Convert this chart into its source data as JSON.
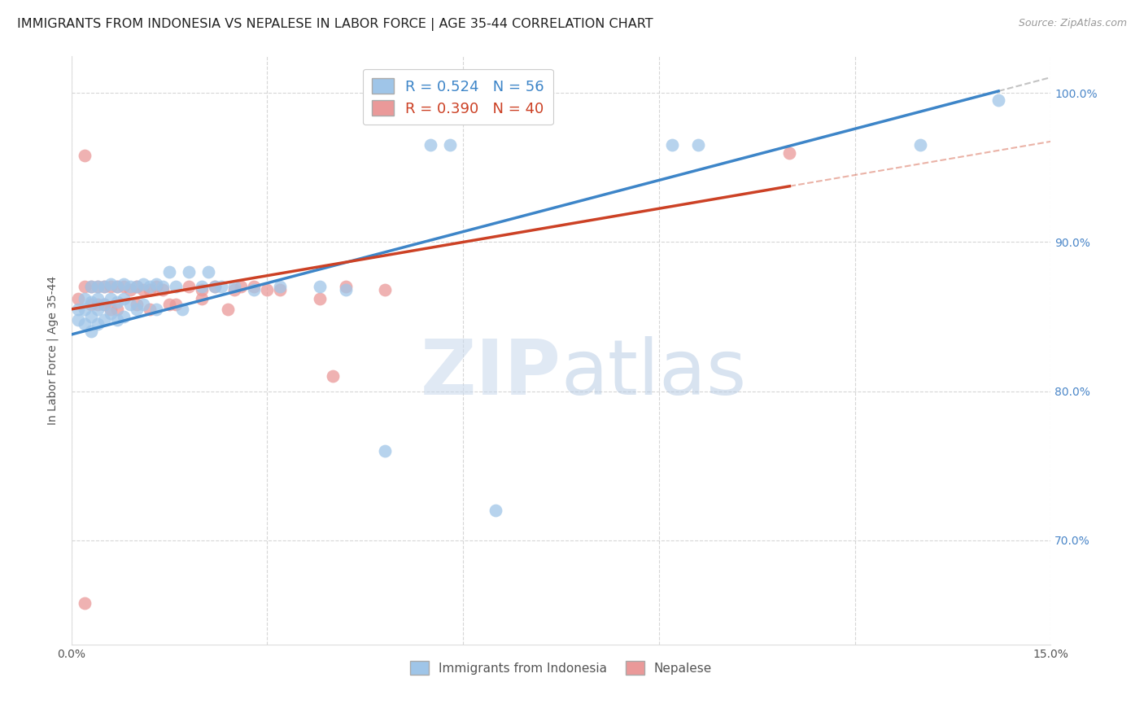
{
  "title": "IMMIGRANTS FROM INDONESIA VS NEPALESE IN LABOR FORCE | AGE 35-44 CORRELATION CHART",
  "source": "Source: ZipAtlas.com",
  "ylabel": "In Labor Force | Age 35-44",
  "xlim": [
    0.0,
    0.15
  ],
  "ylim": [
    0.63,
    1.025
  ],
  "xticks": [
    0.0,
    0.03,
    0.06,
    0.09,
    0.12,
    0.15
  ],
  "xticklabels": [
    "0.0%",
    "",
    "",
    "",
    "",
    "15.0%"
  ],
  "yticks": [
    0.7,
    0.8,
    0.9,
    1.0
  ],
  "yticklabels": [
    "70.0%",
    "80.0%",
    "90.0%",
    "100.0%"
  ],
  "blue_color": "#9fc5e8",
  "pink_color": "#ea9999",
  "blue_line_color": "#3d85c8",
  "pink_line_color": "#cc4125",
  "R_blue": 0.524,
  "N_blue": 56,
  "R_pink": 0.39,
  "N_pink": 40,
  "legend_label_blue": "Immigrants from Indonesia",
  "legend_label_pink": "Nepalese",
  "watermark_zip": "ZIP",
  "watermark_atlas": "atlas",
  "blue_scatter_x": [
    0.001,
    0.001,
    0.002,
    0.002,
    0.002,
    0.003,
    0.003,
    0.003,
    0.003,
    0.004,
    0.004,
    0.004,
    0.004,
    0.005,
    0.005,
    0.005,
    0.006,
    0.006,
    0.006,
    0.007,
    0.007,
    0.007,
    0.008,
    0.008,
    0.008,
    0.009,
    0.009,
    0.01,
    0.01,
    0.011,
    0.011,
    0.012,
    0.013,
    0.013,
    0.014,
    0.015,
    0.016,
    0.017,
    0.018,
    0.02,
    0.021,
    0.022,
    0.023,
    0.025,
    0.028,
    0.032,
    0.038,
    0.042,
    0.048,
    0.055,
    0.058,
    0.065,
    0.092,
    0.096,
    0.13,
    0.142
  ],
  "blue_scatter_y": [
    0.855,
    0.848,
    0.862,
    0.855,
    0.845,
    0.87,
    0.86,
    0.85,
    0.84,
    0.87,
    0.862,
    0.855,
    0.845,
    0.87,
    0.858,
    0.848,
    0.872,
    0.862,
    0.852,
    0.87,
    0.86,
    0.848,
    0.872,
    0.862,
    0.85,
    0.87,
    0.858,
    0.87,
    0.855,
    0.872,
    0.858,
    0.87,
    0.872,
    0.855,
    0.87,
    0.88,
    0.87,
    0.855,
    0.88,
    0.87,
    0.88,
    0.87,
    0.87,
    0.87,
    0.868,
    0.87,
    0.87,
    0.868,
    0.76,
    0.965,
    0.965,
    0.72,
    0.965,
    0.965,
    0.965,
    0.995
  ],
  "pink_scatter_x": [
    0.001,
    0.002,
    0.002,
    0.003,
    0.003,
    0.004,
    0.004,
    0.005,
    0.005,
    0.006,
    0.006,
    0.007,
    0.007,
    0.008,
    0.009,
    0.01,
    0.01,
    0.011,
    0.012,
    0.012,
    0.013,
    0.014,
    0.015,
    0.016,
    0.018,
    0.02,
    0.022,
    0.024,
    0.026,
    0.028,
    0.032,
    0.04,
    0.042,
    0.048,
    0.02,
    0.025,
    0.03,
    0.038,
    0.002,
    0.11
  ],
  "pink_scatter_y": [
    0.862,
    0.958,
    0.87,
    0.87,
    0.858,
    0.87,
    0.858,
    0.87,
    0.858,
    0.87,
    0.855,
    0.87,
    0.855,
    0.87,
    0.868,
    0.87,
    0.858,
    0.868,
    0.868,
    0.855,
    0.87,
    0.868,
    0.858,
    0.858,
    0.87,
    0.862,
    0.87,
    0.855,
    0.87,
    0.87,
    0.868,
    0.81,
    0.87,
    0.868,
    0.868,
    0.868,
    0.868,
    0.862,
    0.658,
    0.96
  ],
  "title_fontsize": 11.5,
  "axis_label_fontsize": 10,
  "tick_fontsize": 10,
  "source_fontsize": 9
}
